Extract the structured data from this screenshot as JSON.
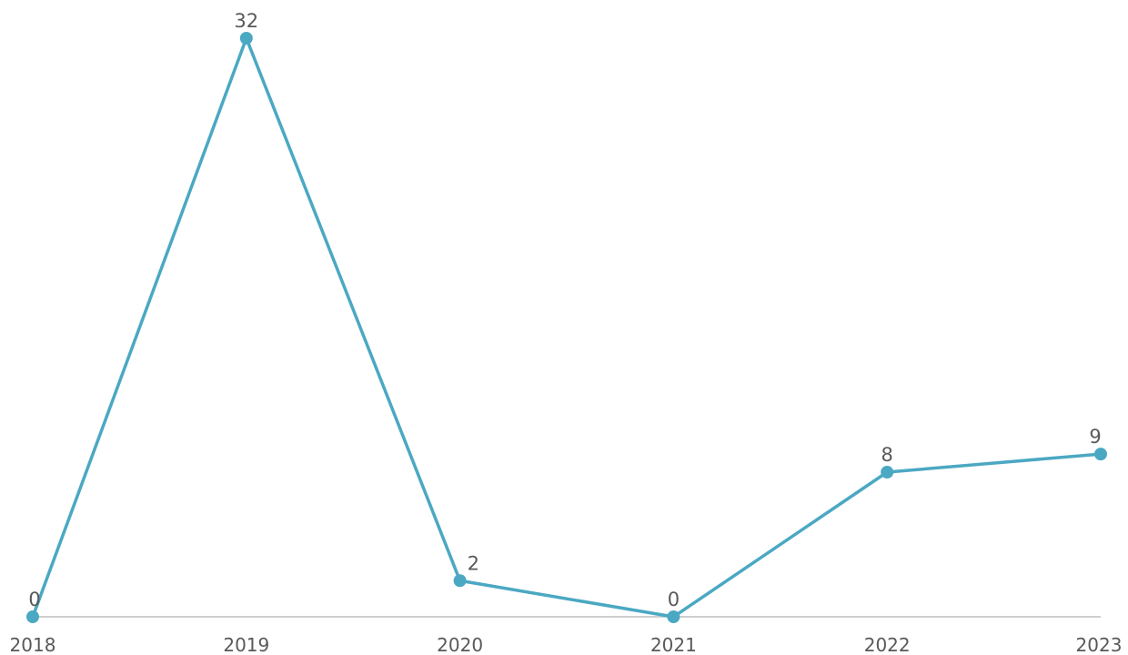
{
  "chart_data": {
    "type": "line",
    "title": "",
    "xlabel": "",
    "ylabel": "",
    "categories": [
      "2018",
      "2019",
      "2020",
      "2021",
      "2022",
      "2023"
    ],
    "series": [
      {
        "values": [
          0,
          32,
          2,
          0,
          8,
          9
        ],
        "color": "#4BA8C3"
      }
    ],
    "ylim": [
      0,
      32
    ],
    "grid": false,
    "legend": "none",
    "data_labels": true,
    "axis_color": "#BFBFBF",
    "text_color": "#595959"
  }
}
